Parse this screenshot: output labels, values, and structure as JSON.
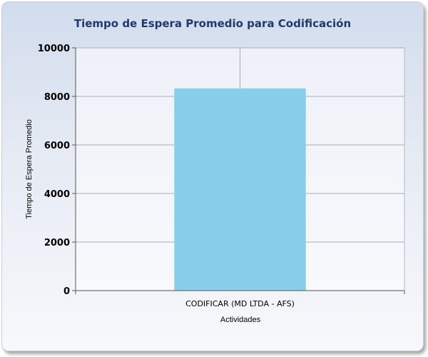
{
  "chart_data": {
    "type": "bar",
    "title": "Tiempo de Espera Promedio para Codificación",
    "xlabel": "Actividades",
    "ylabel": "Tiempo de Espera Promedio",
    "categories": [
      "CODIFICAR (MD LTDA - AFS)"
    ],
    "values": [
      8330
    ],
    "ylim": [
      0,
      10000
    ],
    "yticks": [
      0,
      2000,
      4000,
      6000,
      8000,
      10000
    ],
    "ytick_labels": [
      "0",
      "2000",
      "4000",
      "6000",
      "8000",
      "10000"
    ],
    "grid": true,
    "legend": "none",
    "colors": {
      "bar": "#87ceeb",
      "title": "#1f3a6b",
      "grid": "#a8acb8",
      "axis": "#555555"
    }
  }
}
